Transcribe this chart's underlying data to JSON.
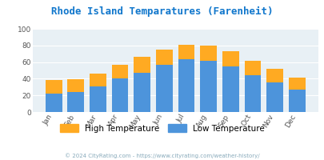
{
  "title": "Rhode Island Temparatures (Farenheit)",
  "months": [
    "Jan",
    "Feb",
    "Mar",
    "Apr",
    "May",
    "Jun",
    "Jul",
    "Aug",
    "Sep",
    "Oct",
    "Nov",
    "Dec"
  ],
  "low_temps": [
    22,
    24,
    31,
    40,
    47,
    57,
    63,
    62,
    55,
    44,
    36,
    27
  ],
  "high_temps": [
    38,
    39,
    46,
    57,
    66,
    75,
    81,
    80,
    73,
    62,
    52,
    41
  ],
  "low_color": "#4d94db",
  "high_color": "#ffaa22",
  "title_color": "#1177cc",
  "plot_bg": "#e8f0f5",
  "footer_text": "© 2024 CityRating.com - https://www.cityrating.com/weather-history/",
  "footer_color": "#88aabb",
  "ylim": [
    0,
    100
  ],
  "yticks": [
    0,
    20,
    40,
    60,
    80,
    100
  ],
  "legend_high": "High Temperature",
  "legend_low": "Low Temperature"
}
